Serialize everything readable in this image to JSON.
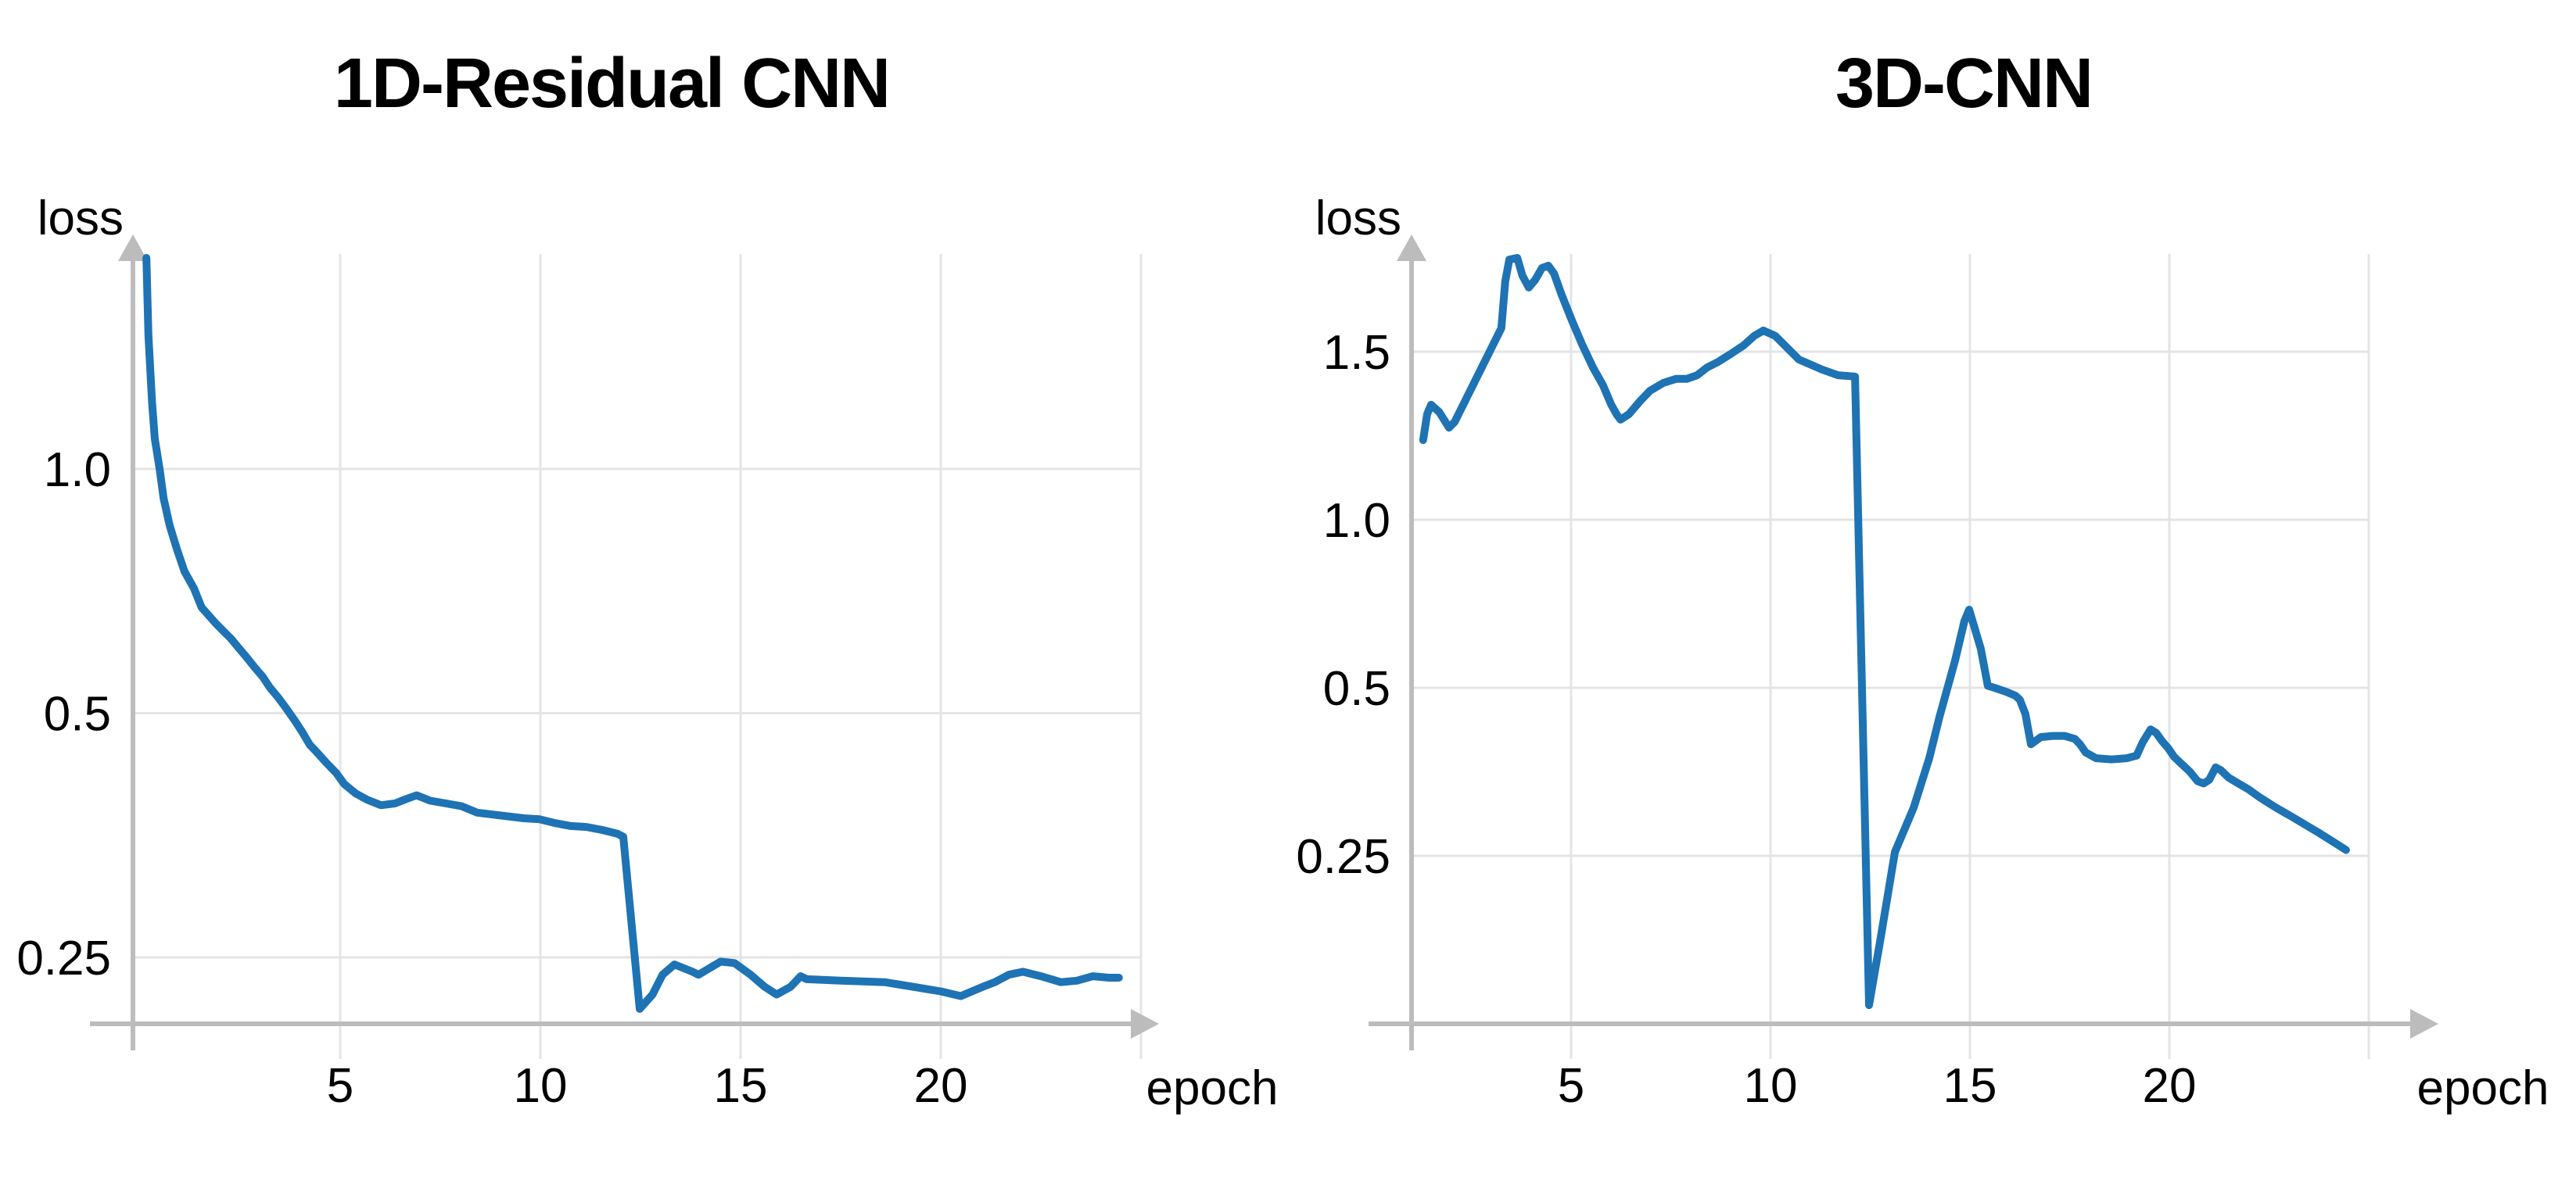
{
  "figure": {
    "background": "#ffffff",
    "description": "Training loss curves for two neural networks, loss vs epoch"
  },
  "chart_data": [
    {
      "type": "line",
      "title": "1D-Residual CNN",
      "xlabel": "epoch",
      "ylabel": "loss",
      "x_ticks": [
        {
          "v": 5,
          "label": "5"
        },
        {
          "v": 10,
          "label": "10"
        },
        {
          "v": 15,
          "label": "15"
        },
        {
          "v": 20,
          "label": "20"
        }
      ],
      "y_ticks": [
        {
          "v": 1.0,
          "label": "1.0"
        },
        {
          "v": 0.5,
          "label": "0.5"
        },
        {
          "v": 0.25,
          "label": "0.25"
        }
      ],
      "y_scale": "log2 (ticks 1.0 / 0.5 / 0.25 equally spaced)",
      "x_range": [
        0,
        25.5
      ],
      "grid": true,
      "legend": "none",
      "line_color": "#1e73b4",
      "axis_color": "#bcbcbc",
      "grid_color": "#e4e4e4",
      "series": [
        {
          "name": "training loss",
          "points": [
            [
              0.16,
              1.82
            ],
            [
              0.21,
              1.46
            ],
            [
              0.3,
              1.21
            ],
            [
              0.37,
              1.09
            ],
            [
              0.49,
              1.0
            ],
            [
              0.59,
              0.92
            ],
            [
              0.74,
              0.852
            ],
            [
              0.92,
              0.797
            ],
            [
              1.11,
              0.748
            ],
            [
              1.35,
              0.712
            ],
            [
              1.54,
              0.675
            ],
            [
              1.68,
              0.663
            ],
            [
              1.88,
              0.646
            ],
            [
              2.07,
              0.632
            ],
            [
              2.27,
              0.618
            ],
            [
              2.46,
              0.602
            ],
            [
              2.66,
              0.586
            ],
            [
              2.87,
              0.569
            ],
            [
              3.07,
              0.554
            ],
            [
              3.24,
              0.538
            ],
            [
              3.46,
              0.522
            ],
            [
              3.65,
              0.507
            ],
            [
              3.85,
              0.491
            ],
            [
              4.04,
              0.475
            ],
            [
              4.24,
              0.457
            ],
            [
              4.39,
              0.449
            ],
            [
              4.66,
              0.434
            ],
            [
              4.9,
              0.422
            ],
            [
              5.1,
              0.409
            ],
            [
              5.39,
              0.398
            ],
            [
              5.68,
              0.391
            ],
            [
              6.02,
              0.385
            ],
            [
              6.37,
              0.387
            ],
            [
              6.66,
              0.392
            ],
            [
              6.91,
              0.396
            ],
            [
              7.25,
              0.39
            ],
            [
              7.64,
              0.387
            ],
            [
              8.03,
              0.384
            ],
            [
              8.42,
              0.377
            ],
            [
              8.81,
              0.375
            ],
            [
              9.2,
              0.373
            ],
            [
              9.59,
              0.371
            ],
            [
              9.98,
              0.37
            ],
            [
              10.37,
              0.366
            ],
            [
              10.76,
              0.363
            ],
            [
              11.15,
              0.362
            ],
            [
              11.54,
              0.359
            ],
            [
              11.93,
              0.355
            ],
            [
              12.07,
              0.352
            ],
            [
              12.48,
              0.216
            ],
            [
              12.8,
              0.225
            ],
            [
              13.05,
              0.238
            ],
            [
              13.35,
              0.245
            ],
            [
              13.8,
              0.24
            ],
            [
              13.95,
              0.238
            ],
            [
              14.5,
              0.247
            ],
            [
              14.85,
              0.246
            ],
            [
              15.25,
              0.238
            ],
            [
              15.6,
              0.23
            ],
            [
              15.9,
              0.225
            ],
            [
              16.25,
              0.23
            ],
            [
              16.5,
              0.237
            ],
            [
              16.65,
              0.235
            ],
            [
              17.5,
              0.234
            ],
            [
              18.6,
              0.233
            ],
            [
              19.3,
              0.23
            ],
            [
              20.0,
              0.227
            ],
            [
              20.5,
              0.224
            ],
            [
              21.05,
              0.23
            ],
            [
              21.35,
              0.233
            ],
            [
              21.7,
              0.238
            ],
            [
              22.05,
              0.24
            ],
            [
              22.5,
              0.237
            ],
            [
              23.0,
              0.233
            ],
            [
              23.4,
              0.234
            ],
            [
              23.8,
              0.237
            ],
            [
              24.2,
              0.236
            ],
            [
              24.45,
              0.236
            ]
          ]
        }
      ]
    },
    {
      "type": "line",
      "title": "3D-CNN",
      "xlabel": "epoch",
      "ylabel": "loss",
      "x_ticks": [
        {
          "v": 5,
          "label": "5"
        },
        {
          "v": 10,
          "label": "10"
        },
        {
          "v": 15,
          "label": "15"
        },
        {
          "v": 20,
          "label": "20"
        }
      ],
      "y_ticks": [
        {
          "v": 1.5,
          "label": "1.5"
        },
        {
          "v": 1.0,
          "label": "1.0"
        },
        {
          "v": 0.5,
          "label": "0.5"
        },
        {
          "v": 0.25,
          "label": "0.25"
        }
      ],
      "y_scale": "hybrid (ticks 1.5 / 1.0 / 0.5 / 0.25 equally spaced; log2 below 1.0, linear above)",
      "x_range": [
        0,
        25.5
      ],
      "grid": true,
      "legend": "none",
      "line_color": "#1e73b4",
      "axis_color": "#bcbcbc",
      "grid_color": "#e4e4e4",
      "series": [
        {
          "name": "training loss",
          "points": [
            [
              1.29,
              1.237
            ],
            [
              1.39,
              1.314
            ],
            [
              1.49,
              1.342
            ],
            [
              1.69,
              1.321
            ],
            [
              1.94,
              1.274
            ],
            [
              2.08,
              1.291
            ],
            [
              2.47,
              1.384
            ],
            [
              2.86,
              1.477
            ],
            [
              3.25,
              1.57
            ],
            [
              3.35,
              1.709
            ],
            [
              3.45,
              1.774
            ],
            [
              3.65,
              1.779
            ],
            [
              3.78,
              1.726
            ],
            [
              3.94,
              1.691
            ],
            [
              4.1,
              1.714
            ],
            [
              4.27,
              1.749
            ],
            [
              4.43,
              1.756
            ],
            [
              4.57,
              1.733
            ],
            [
              4.76,
              1.67
            ],
            [
              5.02,
              1.593
            ],
            [
              5.27,
              1.523
            ],
            [
              5.55,
              1.453
            ],
            [
              5.8,
              1.4
            ],
            [
              6.0,
              1.344
            ],
            [
              6.14,
              1.314
            ],
            [
              6.24,
              1.298
            ],
            [
              6.45,
              1.314
            ],
            [
              6.73,
              1.353
            ],
            [
              6.98,
              1.384
            ],
            [
              7.31,
              1.407
            ],
            [
              7.63,
              1.419
            ],
            [
              7.9,
              1.419
            ],
            [
              8.16,
              1.43
            ],
            [
              8.41,
              1.453
            ],
            [
              8.69,
              1.47
            ],
            [
              9.0,
              1.493
            ],
            [
              9.33,
              1.519
            ],
            [
              9.59,
              1.547
            ],
            [
              9.82,
              1.563
            ],
            [
              10.12,
              1.547
            ],
            [
              10.71,
              1.477
            ],
            [
              11.29,
              1.447
            ],
            [
              11.69,
              1.43
            ],
            [
              12.12,
              1.426
            ],
            [
              12.47,
              0.135
            ],
            [
              12.76,
              0.178
            ],
            [
              13.12,
              0.254
            ],
            [
              13.59,
              0.305
            ],
            [
              13.98,
              0.374
            ],
            [
              14.24,
              0.444
            ],
            [
              14.63,
              0.56
            ],
            [
              14.86,
              0.658
            ],
            [
              14.98,
              0.69
            ],
            [
              15.27,
              0.588
            ],
            [
              15.45,
              0.504
            ],
            [
              15.61,
              0.5
            ],
            [
              15.9,
              0.492
            ],
            [
              16.14,
              0.484
            ],
            [
              16.25,
              0.476
            ],
            [
              16.39,
              0.449
            ],
            [
              16.53,
              0.396
            ],
            [
              16.78,
              0.408
            ],
            [
              17.08,
              0.41
            ],
            [
              17.37,
              0.41
            ],
            [
              17.63,
              0.405
            ],
            [
              17.76,
              0.396
            ],
            [
              17.9,
              0.383
            ],
            [
              18.16,
              0.374
            ],
            [
              18.55,
              0.372
            ],
            [
              18.94,
              0.374
            ],
            [
              19.18,
              0.378
            ],
            [
              19.33,
              0.399
            ],
            [
              19.53,
              0.421
            ],
            [
              19.67,
              0.415
            ],
            [
              19.82,
              0.401
            ],
            [
              19.98,
              0.389
            ],
            [
              20.12,
              0.376
            ],
            [
              20.31,
              0.365
            ],
            [
              20.51,
              0.354
            ],
            [
              20.71,
              0.34
            ],
            [
              20.86,
              0.337
            ],
            [
              21.0,
              0.342
            ],
            [
              21.16,
              0.36
            ],
            [
              21.29,
              0.356
            ],
            [
              21.49,
              0.345
            ],
            [
              21.73,
              0.337
            ],
            [
              21.98,
              0.329
            ],
            [
              22.27,
              0.318
            ],
            [
              22.67,
              0.305
            ],
            [
              23.06,
              0.294
            ],
            [
              23.45,
              0.283
            ],
            [
              23.78,
              0.274
            ],
            [
              24.14,
              0.264
            ],
            [
              24.43,
              0.256
            ]
          ]
        }
      ]
    }
  ]
}
